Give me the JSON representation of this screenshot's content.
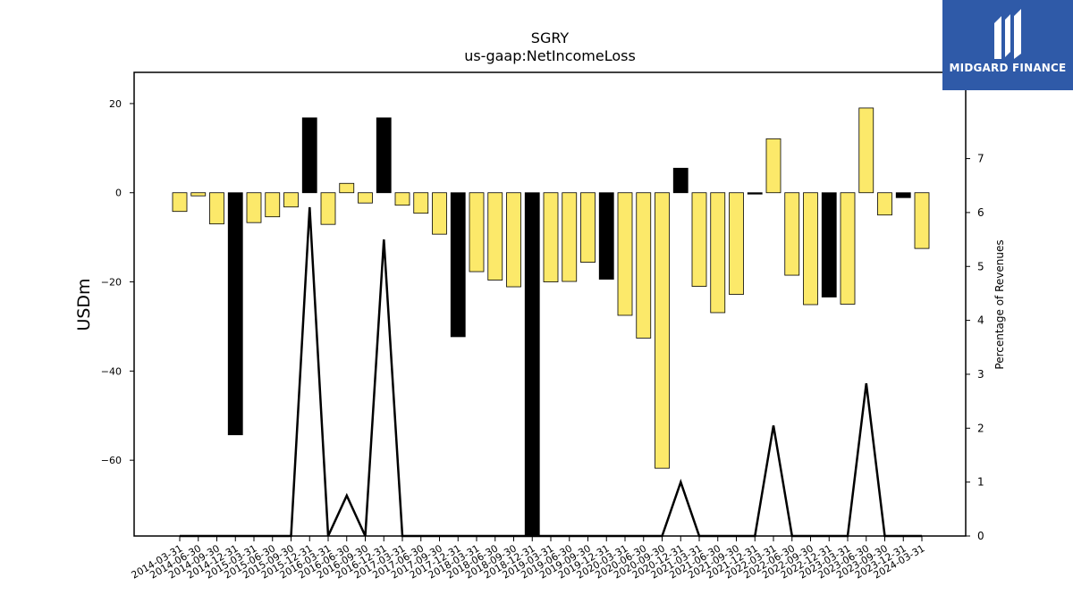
{
  "chart_data": {
    "type": "bar",
    "title": "SGRY",
    "subtitle": "us-gaap:NetIncomeLoss",
    "ylabel": "USDm",
    "y2label": "Percentage of Revenues",
    "ylim": [
      -77,
      27
    ],
    "y2lim": [
      0,
      8.6
    ],
    "yticks": [
      20,
      0,
      -20,
      -40,
      -60
    ],
    "y2ticks": [
      7,
      6,
      5,
      4,
      3,
      2,
      1,
      0
    ],
    "categories": [
      "2014-03-31",
      "2014-06-30",
      "2014-09-30",
      "2014-12-31",
      "2015-03-31",
      "2015-06-30",
      "2015-09-30",
      "2015-12-31",
      "2016-03-31",
      "2016-06-30",
      "2016-09-30",
      "2016-12-31",
      "2017-03-31",
      "2017-06-30",
      "2017-09-30",
      "2017-12-31",
      "2018-03-31",
      "2018-06-30",
      "2018-09-30",
      "2018-12-31",
      "2019-03-31",
      "2019-06-30",
      "2019-09-30",
      "2019-12-31",
      "2020-03-31",
      "2020-06-30",
      "2020-09-30",
      "2020-12-31",
      "2021-03-31",
      "2021-06-30",
      "2021-09-30",
      "2021-12-31",
      "2022-03-31",
      "2022-06-30",
      "2022-09-30",
      "2022-12-31",
      "2023-03-31",
      "2023-06-30",
      "2023-09-30",
      "2023-12-31",
      "2024-03-31"
    ],
    "values": [
      -4.2,
      -0.7,
      -7.0,
      -54.3,
      -6.7,
      -5.4,
      -3.2,
      16.8,
      -7.1,
      2.1,
      -2.3,
      16.8,
      -2.8,
      -4.6,
      -9.3,
      -32.3,
      -17.7,
      -19.6,
      -21.1,
      -77,
      -20.0,
      -19.9,
      -15.6,
      -19.4,
      -27.5,
      -32.6,
      -61.8,
      5.5,
      -21.0,
      -26.9,
      -22.8,
      -0.3,
      12.1,
      -18.5,
      -25.1,
      -23.4,
      -25.0,
      19.0,
      -5.0,
      -1.1,
      -12.5
    ],
    "negative_is_highlight": [
      false,
      false,
      false,
      true,
      false,
      false,
      false,
      true,
      false,
      false,
      false,
      true,
      false,
      false,
      false,
      true,
      false,
      false,
      false,
      true,
      false,
      false,
      false,
      true,
      false,
      false,
      false,
      true,
      false,
      false,
      false,
      true,
      false,
      false,
      false,
      true,
      false,
      false,
      false,
      true,
      false
    ],
    "line_values": [
      0,
      0,
      0,
      0,
      0,
      0,
      0,
      6.1,
      0,
      0.75,
      0,
      5.5,
      0,
      0,
      0,
      0,
      0,
      0,
      0,
      0,
      0,
      0,
      0,
      0,
      0,
      0,
      0,
      1.0,
      0,
      0,
      0,
      0,
      2.05,
      0,
      0,
      0,
      0,
      2.83,
      0,
      0,
      0
    ],
    "colors": {
      "bar": "#fce96a",
      "highlight": "#000000",
      "line": "#000000"
    }
  },
  "logo": {
    "text": "MIDGARD FINANCE"
  }
}
